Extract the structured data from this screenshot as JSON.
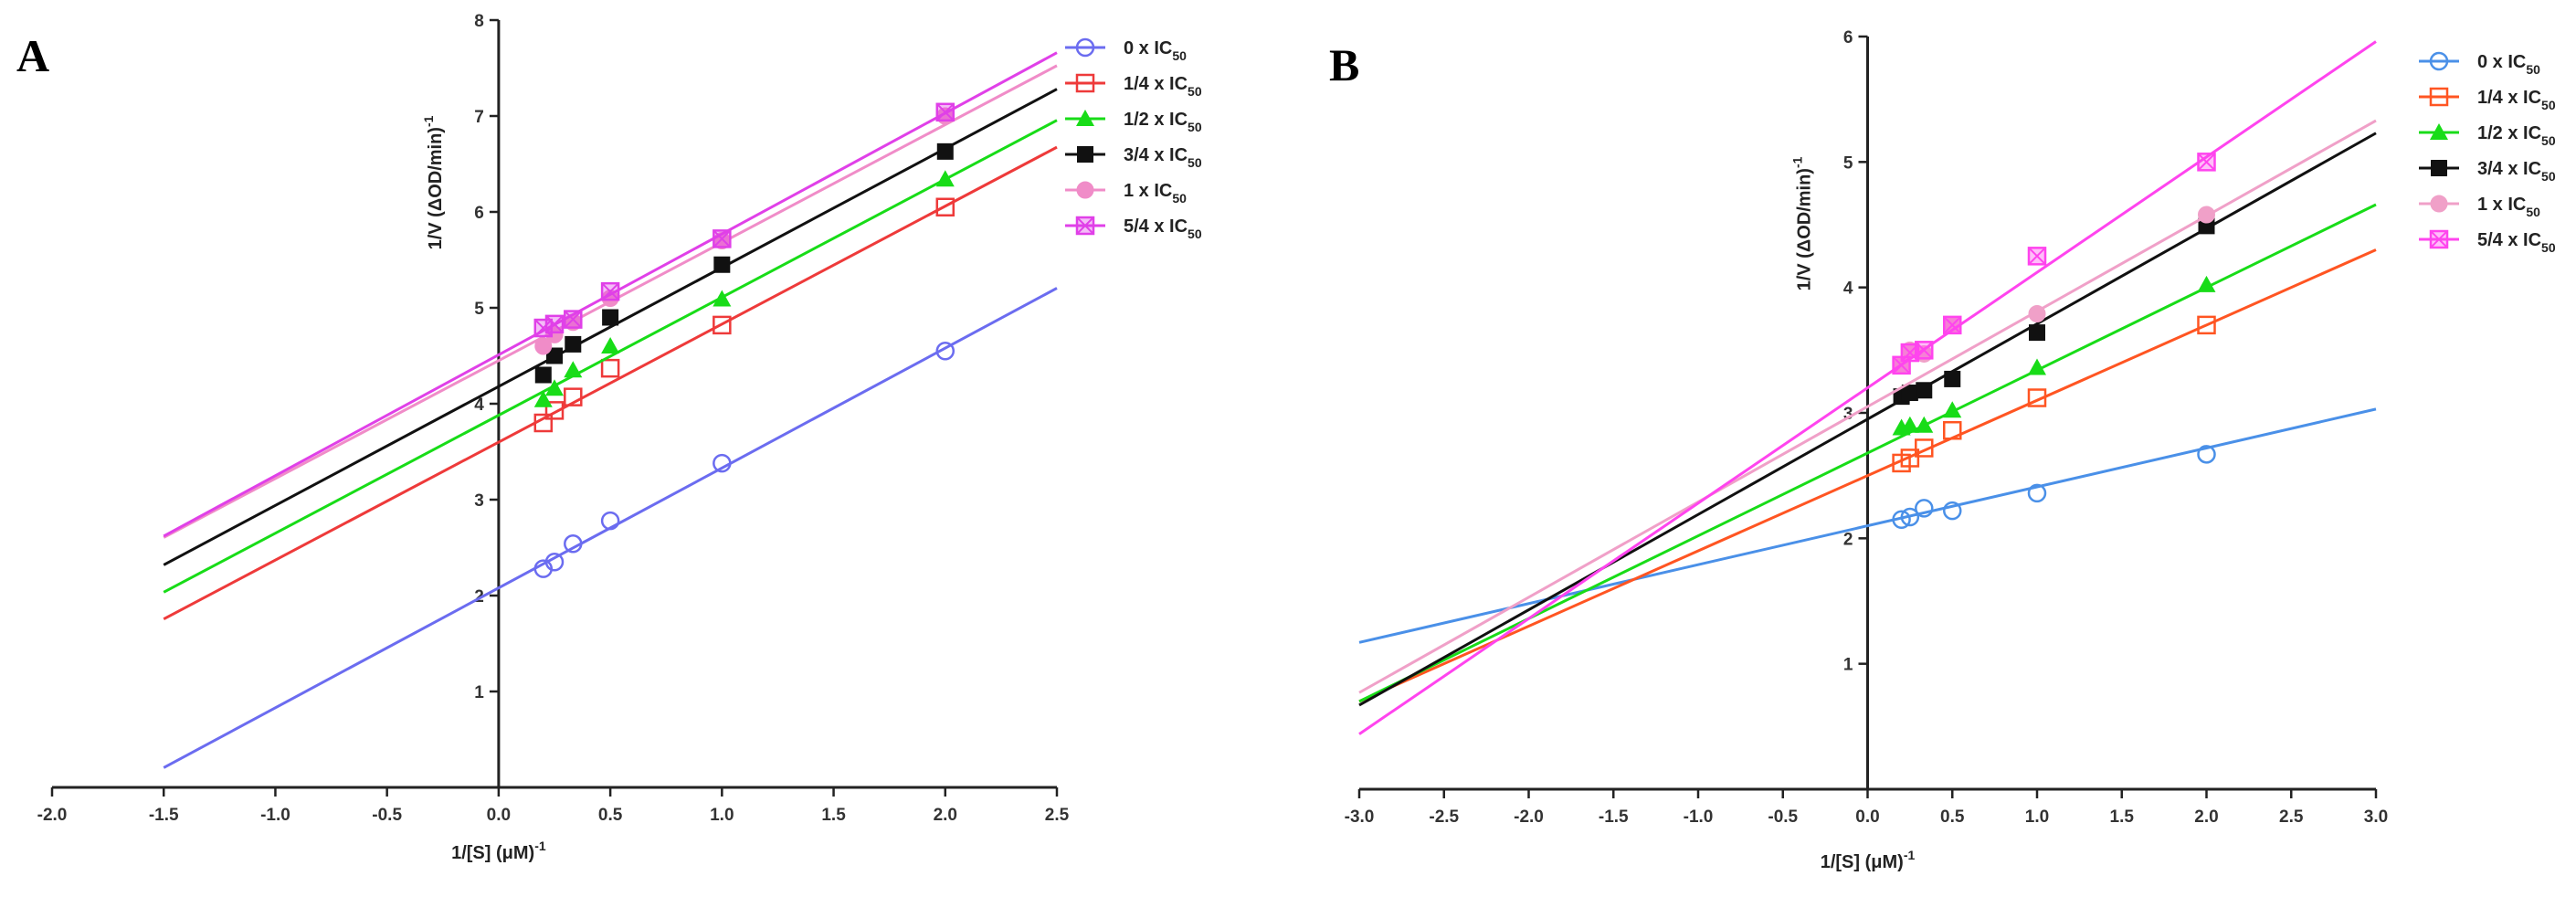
{
  "chart_data": [
    {
      "panel_label": "A",
      "type": "scatter",
      "xlabel": "1/[S] (μM)",
      "xlabel_suffix": "-1",
      "ylabel": "1/V (ΔOD/min)",
      "ylabel_suffix": "-1",
      "xlim": [
        -2.0,
        2.5
      ],
      "ylim": [
        0,
        8
      ],
      "xticks": [
        -2.0,
        -1.5,
        -1.0,
        -0.5,
        0.0,
        0.5,
        1.0,
        1.5,
        2.0,
        2.5
      ],
      "xtick_labels": [
        "-2.0",
        "-1.5",
        "-1.0",
        "-0.5",
        "0.0",
        "0.5",
        "1.0",
        "1.5",
        "2.0",
        "2.5"
      ],
      "yticks": [
        1,
        2,
        3,
        4,
        5,
        6,
        7,
        8
      ],
      "ytick_labels": [
        "1",
        "2",
        "3",
        "4",
        "5",
        "6",
        "7",
        "8"
      ],
      "fit_range": [
        -1.5,
        2.5
      ],
      "legend_position": "top-right",
      "series": [
        {
          "name": "0  x IC",
          "sub": "50",
          "color": "#6b6cf0",
          "marker": "circle-open",
          "x": [
            0.2,
            0.25,
            0.333,
            0.5,
            1.0,
            2.0
          ],
          "y": [
            2.28,
            2.35,
            2.54,
            2.78,
            3.38,
            4.55
          ],
          "slope": 1.25,
          "intercept": 2.08
        },
        {
          "name": "1/4  x IC",
          "sub": "50",
          "color": "#ee3a3a",
          "marker": "square-open",
          "x": [
            0.2,
            0.25,
            0.333,
            0.5,
            1.0,
            2.0
          ],
          "y": [
            3.8,
            3.93,
            4.07,
            4.37,
            4.82,
            6.05
          ],
          "slope": 1.23,
          "intercept": 3.6
        },
        {
          "name": "1/2  x IC",
          "sub": "50",
          "color": "#18dc18",
          "marker": "triangle-filled",
          "x": [
            0.2,
            0.25,
            0.333,
            0.5,
            1.0,
            2.0
          ],
          "y": [
            4.04,
            4.16,
            4.35,
            4.6,
            5.09,
            6.34
          ],
          "slope": 1.23,
          "intercept": 3.88
        },
        {
          "name": "3/4  x IC",
          "sub": "50",
          "color": "#111111",
          "marker": "square-filled",
          "x": [
            0.2,
            0.25,
            0.333,
            0.5,
            1.0,
            2.0
          ],
          "y": [
            4.3,
            4.5,
            4.62,
            4.9,
            5.45,
            6.63
          ],
          "slope": 1.24,
          "intercept": 4.18
        },
        {
          "name": "1  x IC",
          "sub": "50",
          "color": "#f08cc8",
          "marker": "circle-filled",
          "x": [
            0.2,
            0.25,
            0.333,
            0.5,
            1.0,
            2.0
          ],
          "y": [
            4.6,
            4.72,
            4.85,
            5.1,
            5.7,
            7.0
          ],
          "slope": 1.23,
          "intercept": 4.45
        },
        {
          "name": "5/4  x IC",
          "sub": "50",
          "color": "#e040e8",
          "marker": "square-x",
          "x": [
            0.2,
            0.25,
            0.333,
            0.5,
            1.0,
            2.0
          ],
          "y": [
            4.79,
            4.83,
            4.88,
            5.17,
            5.72,
            7.04
          ],
          "slope": 1.26,
          "intercept": 4.51
        }
      ]
    },
    {
      "panel_label": "B",
      "type": "scatter",
      "xlabel": "1/[S] (μM)",
      "xlabel_suffix": "-1",
      "ylabel": "1/V (ΔOD/min)",
      "ylabel_suffix": "-1",
      "xlim": [
        -3.0,
        3.0
      ],
      "ylim": [
        0,
        6
      ],
      "xticks": [
        -3.0,
        -2.5,
        -2.0,
        -1.5,
        -1.0,
        -0.5,
        0.0,
        0.5,
        1.0,
        1.5,
        2.0,
        2.5,
        3.0
      ],
      "xtick_labels": [
        "-3.0",
        "-2.5",
        "-2.0",
        "-1.5",
        "-1.0",
        "-0.5",
        "0.0",
        "0.5",
        "1.0",
        "1.5",
        "2.0",
        "2.5",
        "3.0"
      ],
      "yticks": [
        1,
        2,
        3,
        4,
        5,
        6
      ],
      "ytick_labels": [
        "1",
        "2",
        "3",
        "4",
        "5",
        "6"
      ],
      "fit_range": [
        -3.0,
        3.0
      ],
      "legend_position": "top-right",
      "series": [
        {
          "name": "0  x IC",
          "sub": "50",
          "color": "#4a90e8",
          "marker": "circle-open",
          "x": [
            0.2,
            0.25,
            0.333,
            0.5,
            1.0,
            2.0
          ],
          "y": [
            2.15,
            2.17,
            2.24,
            2.22,
            2.36,
            2.67
          ],
          "slope": 0.31,
          "intercept": 2.1
        },
        {
          "name": "1/4  x IC",
          "sub": "50",
          "color": "#ff5522",
          "marker": "square-open",
          "x": [
            0.2,
            0.25,
            0.333,
            0.5,
            1.0,
            2.0
          ],
          "y": [
            2.6,
            2.64,
            2.72,
            2.86,
            3.12,
            3.7
          ],
          "slope": 0.6,
          "intercept": 2.5
        },
        {
          "name": "1/2  x IC",
          "sub": "50",
          "color": "#18dc18",
          "marker": "triangle-filled",
          "x": [
            0.2,
            0.25,
            0.333,
            0.5,
            1.0,
            2.0
          ],
          "y": [
            2.88,
            2.9,
            2.9,
            3.02,
            3.36,
            4.02
          ],
          "slope": 0.66,
          "intercept": 2.68
        },
        {
          "name": "3/4  x IC",
          "sub": "50",
          "color": "#111111",
          "marker": "square-filled",
          "x": [
            0.2,
            0.25,
            0.333,
            0.5,
            1.0,
            2.0
          ],
          "y": [
            3.13,
            3.16,
            3.18,
            3.27,
            3.64,
            4.49
          ],
          "slope": 0.76,
          "intercept": 2.95
        },
        {
          "name": "1  x IC",
          "sub": "50",
          "color": "#f0a0c8",
          "marker": "circle-filled",
          "x": [
            0.2,
            0.25,
            0.333,
            0.5,
            1.0,
            2.0
          ],
          "y": [
            3.38,
            3.5,
            3.47,
            3.7,
            3.79,
            4.58
          ],
          "slope": 0.76,
          "intercept": 3.05
        },
        {
          "name": "5/4  x IC",
          "sub": "50",
          "color": "#ff44ee",
          "marker": "square-x",
          "x": [
            0.2,
            0.25,
            0.333,
            0.5,
            1.0,
            2.0
          ],
          "y": [
            3.38,
            3.48,
            3.5,
            3.7,
            4.25,
            5.0
          ],
          "slope": 0.92,
          "intercept": 3.2
        }
      ]
    }
  ]
}
